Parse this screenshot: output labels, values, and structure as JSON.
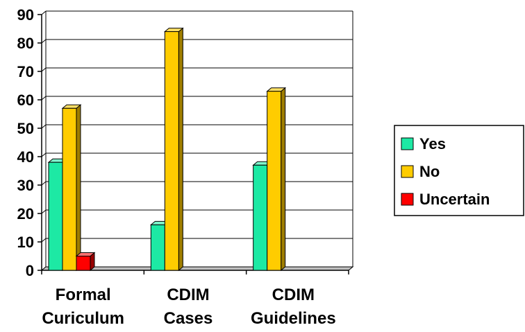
{
  "chart_data": {
    "type": "bar",
    "style": "3d",
    "categories": [
      [
        "Formal",
        "Curiculum"
      ],
      [
        "CDIM",
        "Cases"
      ],
      [
        "CDIM",
        "Guidelines"
      ]
    ],
    "series": [
      {
        "name": "Yes",
        "values": [
          38,
          16,
          37
        ],
        "color": "#1de9a4",
        "side_color": "#0b8a5e",
        "top_color": "#7ff5cc"
      },
      {
        "name": "No",
        "values": [
          57,
          84,
          63
        ],
        "color": "#ffcc00",
        "side_color": "#9e7d00",
        "top_color": "#ffe066"
      },
      {
        "name": "Uncertain",
        "values": [
          5,
          0,
          0
        ],
        "color": "#ff0000",
        "side_color": "#990000",
        "top_color": "#ff7070"
      }
    ],
    "ylim": [
      0,
      90
    ],
    "yticks": [
      0,
      10,
      20,
      30,
      40,
      50,
      60,
      70,
      80,
      90
    ],
    "grid": true,
    "legend_position": "right"
  }
}
